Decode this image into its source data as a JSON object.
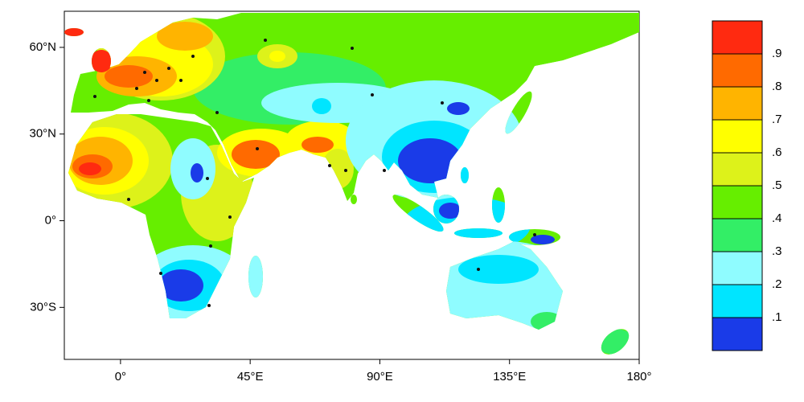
{
  "map": {
    "type": "contour-map",
    "xlim": [
      -19.5,
      180
    ],
    "ylim": [
      -48,
      72.5
    ],
    "xticks": [
      {
        "value": 0,
        "label": "0°"
      },
      {
        "value": 45,
        "label": "45°E"
      },
      {
        "value": 90,
        "label": "90°E"
      },
      {
        "value": 135,
        "label": "135°E"
      },
      {
        "value": 180,
        "label": "180°"
      }
    ],
    "yticks": [
      {
        "value": 60,
        "label": "60°N"
      },
      {
        "value": 30,
        "label": "30°N"
      },
      {
        "value": 0,
        "label": "0°"
      },
      {
        "value": -30,
        "label": "30°S"
      }
    ]
  },
  "colorbar": {
    "levels": [
      {
        "value": 0.1,
        "label": ".1"
      },
      {
        "value": 0.2,
        "label": ".2"
      },
      {
        "value": 0.3,
        "label": ".3"
      },
      {
        "value": 0.4,
        "label": ".4"
      },
      {
        "value": 0.5,
        "label": ".5"
      },
      {
        "value": 0.6,
        "label": ".6"
      },
      {
        "value": 0.7,
        "label": ".7"
      },
      {
        "value": 0.8,
        "label": ".8"
      },
      {
        "value": 0.9,
        "label": ".9"
      }
    ],
    "colors": [
      "#1a3be8",
      "#00e5ff",
      "#8ffcff",
      "#33ee66",
      "#66ee00",
      "#ddf21a",
      "#ffff00",
      "#ffb400",
      "#ff6a00",
      "#ff2a10"
    ]
  }
}
